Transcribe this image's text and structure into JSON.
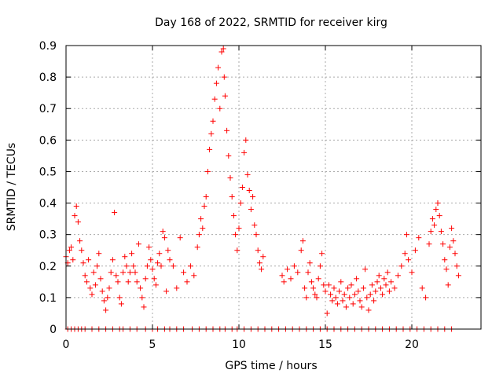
{
  "chart_data": {
    "type": "scatter",
    "title": "Day 168 of 2022, SRMTID for receiver kirg",
    "xlabel": "GPS time / hours",
    "ylabel": "SRMTID / TECUs",
    "xlim": [
      0,
      24
    ],
    "ylim": [
      0,
      0.9
    ],
    "x_ticks": [
      0,
      5,
      10,
      15,
      20
    ],
    "x_tick_labels": [
      "0",
      "5",
      "10",
      "15",
      "20"
    ],
    "y_ticks": [
      0,
      0.1,
      0.2,
      0.3,
      0.4,
      0.5,
      0.6,
      0.7,
      0.8,
      0.9
    ],
    "y_tick_labels": [
      "0",
      "0.1",
      "0.2",
      "0.3",
      "0.4",
      "0.5",
      "0.6",
      "0.7",
      "0.8",
      "0.9"
    ],
    "grid": true,
    "marker": "+",
    "series": [
      {
        "name": "SRMTID",
        "color": "#ff0000",
        "points": [
          [
            0.0,
            0.23
          ],
          [
            0.1,
            0.21
          ],
          [
            0.2,
            0.25
          ],
          [
            0.3,
            0.26
          ],
          [
            0.4,
            0.22
          ],
          [
            0.5,
            0.36
          ],
          [
            0.6,
            0.39
          ],
          [
            0.7,
            0.34
          ],
          [
            0.8,
            0.28
          ],
          [
            0.9,
            0.25
          ],
          [
            1.0,
            0.21
          ],
          [
            1.1,
            0.17
          ],
          [
            1.2,
            0.15
          ],
          [
            1.3,
            0.22
          ],
          [
            1.4,
            0.13
          ],
          [
            1.5,
            0.11
          ],
          [
            1.6,
            0.18
          ],
          [
            1.7,
            0.14
          ],
          [
            1.8,
            0.2
          ],
          [
            1.9,
            0.24
          ],
          [
            2.0,
            0.16
          ],
          [
            2.1,
            0.12
          ],
          [
            2.2,
            0.09
          ],
          [
            2.3,
            0.06
          ],
          [
            2.4,
            0.1
          ],
          [
            2.5,
            0.13
          ],
          [
            2.6,
            0.18
          ],
          [
            2.7,
            0.22
          ],
          [
            2.8,
            0.37
          ],
          [
            2.9,
            0.17
          ],
          [
            3.0,
            0.15
          ],
          [
            3.1,
            0.1
          ],
          [
            3.2,
            0.08
          ],
          [
            3.3,
            0.18
          ],
          [
            3.4,
            0.23
          ],
          [
            3.5,
            0.2
          ],
          [
            3.6,
            0.15
          ],
          [
            3.7,
            0.18
          ],
          [
            3.8,
            0.24
          ],
          [
            3.9,
            0.2
          ],
          [
            4.0,
            0.18
          ],
          [
            4.1,
            0.15
          ],
          [
            4.2,
            0.27
          ],
          [
            4.3,
            0.13
          ],
          [
            4.4,
            0.1
          ],
          [
            4.5,
            0.07
          ],
          [
            4.6,
            0.16
          ],
          [
            4.7,
            0.2
          ],
          [
            4.8,
            0.26
          ],
          [
            4.9,
            0.22
          ],
          [
            5.0,
            0.19
          ],
          [
            5.1,
            0.16
          ],
          [
            5.2,
            0.14
          ],
          [
            5.3,
            0.21
          ],
          [
            5.4,
            0.24
          ],
          [
            5.5,
            0.2
          ],
          [
            5.6,
            0.31
          ],
          [
            5.7,
            0.29
          ],
          [
            5.8,
            0.12
          ],
          [
            5.9,
            0.25
          ],
          [
            6.0,
            0.22
          ],
          [
            6.2,
            0.2
          ],
          [
            6.4,
            0.13
          ],
          [
            6.6,
            0.29
          ],
          [
            6.8,
            0.18
          ],
          [
            7.0,
            0.15
          ],
          [
            7.2,
            0.2
          ],
          [
            7.4,
            0.17
          ],
          [
            7.6,
            0.26
          ],
          [
            7.7,
            0.3
          ],
          [
            7.8,
            0.35
          ],
          [
            7.9,
            0.32
          ],
          [
            8.0,
            0.39
          ],
          [
            8.1,
            0.42
          ],
          [
            8.2,
            0.5
          ],
          [
            8.3,
            0.57
          ],
          [
            8.4,
            0.62
          ],
          [
            8.5,
            0.66
          ],
          [
            8.6,
            0.73
          ],
          [
            8.7,
            0.78
          ],
          [
            8.8,
            0.83
          ],
          [
            8.9,
            0.7
          ],
          [
            9.0,
            0.88
          ],
          [
            9.1,
            0.89
          ],
          [
            9.15,
            0.8
          ],
          [
            9.2,
            0.74
          ],
          [
            9.3,
            0.63
          ],
          [
            9.4,
            0.55
          ],
          [
            9.5,
            0.48
          ],
          [
            9.6,
            0.42
          ],
          [
            9.7,
            0.36
          ],
          [
            9.8,
            0.3
          ],
          [
            9.9,
            0.25
          ],
          [
            10.0,
            0.32
          ],
          [
            10.1,
            0.4
          ],
          [
            10.2,
            0.45
          ],
          [
            10.3,
            0.56
          ],
          [
            10.4,
            0.6
          ],
          [
            10.5,
            0.49
          ],
          [
            10.6,
            0.44
          ],
          [
            10.7,
            0.38
          ],
          [
            10.8,
            0.42
          ],
          [
            10.9,
            0.33
          ],
          [
            11.0,
            0.3
          ],
          [
            11.1,
            0.25
          ],
          [
            11.2,
            0.21
          ],
          [
            11.3,
            0.19
          ],
          [
            11.4,
            0.23
          ],
          [
            12.5,
            0.17
          ],
          [
            12.6,
            0.15
          ],
          [
            12.8,
            0.19
          ],
          [
            13.0,
            0.16
          ],
          [
            13.2,
            0.2
          ],
          [
            13.4,
            0.18
          ],
          [
            13.6,
            0.25
          ],
          [
            13.7,
            0.28
          ],
          [
            13.8,
            0.13
          ],
          [
            13.9,
            0.1
          ],
          [
            14.0,
            0.18
          ],
          [
            14.1,
            0.21
          ],
          [
            14.2,
            0.15
          ],
          [
            14.3,
            0.13
          ],
          [
            14.4,
            0.11
          ],
          [
            14.5,
            0.1
          ],
          [
            14.6,
            0.16
          ],
          [
            14.7,
            0.2
          ],
          [
            14.8,
            0.24
          ],
          [
            14.9,
            0.14
          ],
          [
            15.0,
            0.12
          ],
          [
            15.1,
            0.05
          ],
          [
            15.2,
            0.14
          ],
          [
            15.3,
            0.11
          ],
          [
            15.4,
            0.09
          ],
          [
            15.5,
            0.13
          ],
          [
            15.6,
            0.1
          ],
          [
            15.7,
            0.08
          ],
          [
            15.8,
            0.12
          ],
          [
            15.9,
            0.15
          ],
          [
            16.0,
            0.09
          ],
          [
            16.1,
            0.11
          ],
          [
            16.2,
            0.07
          ],
          [
            16.3,
            0.13
          ],
          [
            16.4,
            0.1
          ],
          [
            16.5,
            0.14
          ],
          [
            16.6,
            0.08
          ],
          [
            16.7,
            0.11
          ],
          [
            16.8,
            0.16
          ],
          [
            16.9,
            0.12
          ],
          [
            17.0,
            0.09
          ],
          [
            17.1,
            0.07
          ],
          [
            17.2,
            0.13
          ],
          [
            17.3,
            0.19
          ],
          [
            17.4,
            0.1
          ],
          [
            17.5,
            0.06
          ],
          [
            17.6,
            0.11
          ],
          [
            17.7,
            0.14
          ],
          [
            17.8,
            0.09
          ],
          [
            17.9,
            0.12
          ],
          [
            18.0,
            0.15
          ],
          [
            18.1,
            0.17
          ],
          [
            18.2,
            0.13
          ],
          [
            18.3,
            0.11
          ],
          [
            18.4,
            0.16
          ],
          [
            18.5,
            0.14
          ],
          [
            18.6,
            0.18
          ],
          [
            18.7,
            0.12
          ],
          [
            18.8,
            0.15
          ],
          [
            19.0,
            0.13
          ],
          [
            19.2,
            0.17
          ],
          [
            19.4,
            0.2
          ],
          [
            19.6,
            0.24
          ],
          [
            19.7,
            0.3
          ],
          [
            19.8,
            0.22
          ],
          [
            20.0,
            0.18
          ],
          [
            20.2,
            0.25
          ],
          [
            20.4,
            0.29
          ],
          [
            20.6,
            0.13
          ],
          [
            20.8,
            0.1
          ],
          [
            21.0,
            0.27
          ],
          [
            21.1,
            0.31
          ],
          [
            21.2,
            0.35
          ],
          [
            21.3,
            0.33
          ],
          [
            21.4,
            0.38
          ],
          [
            21.5,
            0.4
          ],
          [
            21.6,
            0.36
          ],
          [
            21.7,
            0.31
          ],
          [
            21.8,
            0.27
          ],
          [
            21.9,
            0.22
          ],
          [
            22.0,
            0.19
          ],
          [
            22.1,
            0.14
          ],
          [
            22.2,
            0.26
          ],
          [
            22.3,
            0.32
          ],
          [
            22.4,
            0.28
          ],
          [
            22.5,
            0.24
          ],
          [
            22.6,
            0.2
          ],
          [
            22.7,
            0.17
          ],
          [
            0.1,
            0.0
          ],
          [
            0.3,
            0.0
          ],
          [
            0.5,
            0.0
          ],
          [
            0.7,
            0.0
          ],
          [
            0.9,
            0.0
          ],
          [
            1.1,
            0.0
          ],
          [
            1.5,
            0.0
          ],
          [
            1.9,
            0.0
          ],
          [
            2.3,
            0.0
          ],
          [
            2.7,
            0.0
          ],
          [
            3.1,
            0.0
          ],
          [
            3.3,
            0.0
          ],
          [
            3.7,
            0.0
          ],
          [
            4.1,
            0.0
          ],
          [
            4.6,
            0.0
          ],
          [
            5.0,
            0.0
          ],
          [
            5.3,
            0.0
          ],
          [
            5.7,
            0.0
          ],
          [
            6.0,
            0.0
          ],
          [
            6.4,
            0.0
          ],
          [
            6.8,
            0.0
          ],
          [
            7.3,
            0.0
          ],
          [
            7.7,
            0.0
          ],
          [
            8.1,
            0.0
          ],
          [
            8.5,
            0.0
          ],
          [
            8.9,
            0.0
          ],
          [
            9.2,
            0.0
          ],
          [
            9.6,
            0.0
          ],
          [
            9.9,
            0.0
          ],
          [
            10.3,
            0.0
          ],
          [
            10.7,
            0.0
          ],
          [
            11.1,
            0.0
          ],
          [
            11.5,
            0.0
          ],
          [
            11.9,
            0.0
          ],
          [
            12.3,
            0.0
          ],
          [
            12.7,
            0.0
          ],
          [
            13.1,
            0.0
          ],
          [
            13.5,
            0.0
          ],
          [
            13.9,
            0.0
          ],
          [
            14.3,
            0.0
          ],
          [
            14.7,
            0.0
          ],
          [
            15.1,
            0.0
          ],
          [
            15.5,
            0.0
          ],
          [
            15.9,
            0.0
          ],
          [
            16.3,
            0.0
          ],
          [
            16.7,
            0.0
          ],
          [
            17.1,
            0.0
          ],
          [
            17.5,
            0.0
          ],
          [
            17.9,
            0.0
          ],
          [
            18.3,
            0.0
          ],
          [
            18.7,
            0.0
          ],
          [
            19.1,
            0.0
          ],
          [
            19.5,
            0.0
          ],
          [
            19.9,
            0.0
          ],
          [
            20.3,
            0.0
          ],
          [
            20.7,
            0.0
          ],
          [
            21.1,
            0.0
          ],
          [
            21.5,
            0.0
          ],
          [
            21.9,
            0.0
          ],
          [
            22.3,
            0.0
          ]
        ]
      }
    ]
  }
}
